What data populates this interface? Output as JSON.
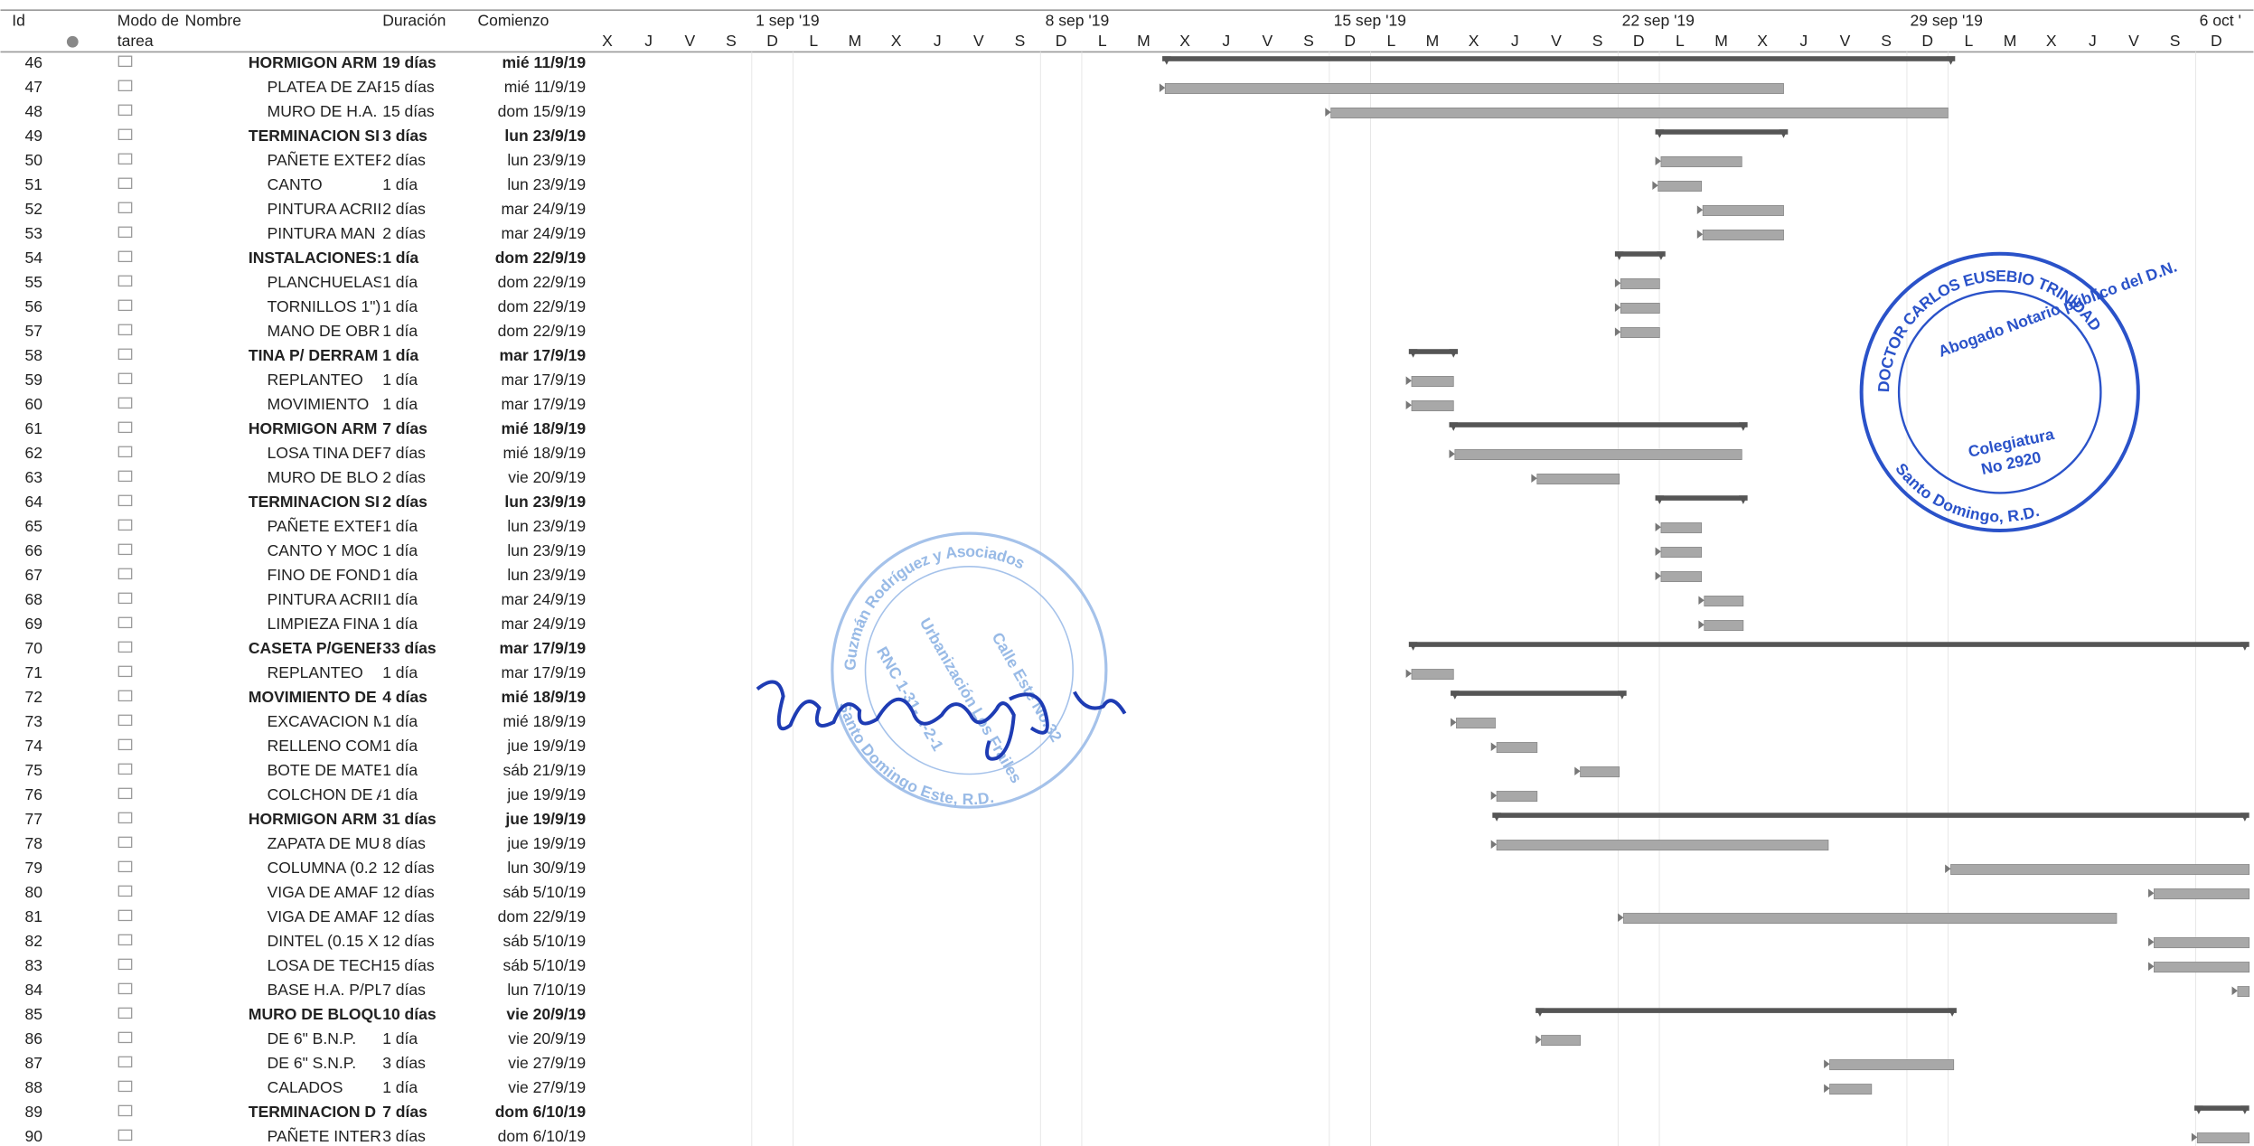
{
  "header": {
    "id": "Id",
    "mode": [
      "Modo de",
      "tarea"
    ],
    "name": "Nombre",
    "duration": "Duración",
    "start": "Comienzo"
  },
  "timeline": {
    "weeks": [
      "1 sep '19",
      "8 sep '19",
      "15 sep '19",
      "22 sep '19",
      "29 sep '19",
      "6 oct '"
    ],
    "days": [
      "X",
      "J",
      "V",
      "S",
      "D",
      "L",
      "M",
      "X",
      "J",
      "V",
      "S",
      "D",
      "L",
      "M",
      "X",
      "J",
      "V",
      "S",
      "D",
      "L",
      "M",
      "X",
      "J",
      "V",
      "S",
      "D",
      "L",
      "M",
      "X",
      "J",
      "V",
      "S",
      "D",
      "L",
      "M",
      "X",
      "J",
      "V",
      "S",
      "D"
    ]
  },
  "rows": [
    [
      "46",
      "HORMIGON ARM",
      "19 días",
      "mié 11/9/19"
    ],
    [
      "47",
      "PLATEA DE ZAF",
      "15 días",
      "mié 11/9/19"
    ],
    [
      "48",
      "MURO DE H.A.",
      "15 días",
      "dom 15/9/19"
    ],
    [
      "49",
      "TERMINACION SI",
      "3 días",
      "lun 23/9/19"
    ],
    [
      "50",
      "PAÑETE EXTER",
      "2 días",
      "lun 23/9/19"
    ],
    [
      "51",
      "CANTO",
      "1 día",
      "lun 23/9/19"
    ],
    [
      "52",
      "PINTURA ACRII",
      "2 días",
      "mar 24/9/19"
    ],
    [
      "53",
      "PINTURA MAN",
      "2 días",
      "mar 24/9/19"
    ],
    [
      "54",
      "INSTALACIONES:",
      "1 día",
      "dom 22/9/19"
    ],
    [
      "55",
      "PLANCHUELAS",
      "1 día",
      "dom 22/9/19"
    ],
    [
      "56",
      "TORNILLOS 1\")",
      "1 día",
      "dom 22/9/19"
    ],
    [
      "57",
      "MANO DE OBR",
      "1 día",
      "dom 22/9/19"
    ],
    [
      "58",
      "TINA P/ DERRAM",
      "1 día",
      "mar 17/9/19"
    ],
    [
      "59",
      "REPLANTEO",
      "1 día",
      "mar 17/9/19"
    ],
    [
      "60",
      "MOVIMIENTO",
      "1 día",
      "mar 17/9/19"
    ],
    [
      "61",
      "HORMIGON ARM",
      "7 días",
      "mié 18/9/19"
    ],
    [
      "62",
      "LOSA TINA DEF",
      "7 días",
      "mié 18/9/19"
    ],
    [
      "63",
      "MURO DE BLO",
      "2 días",
      "vie 20/9/19"
    ],
    [
      "64",
      "TERMINACION SI",
      "2 días",
      "lun 23/9/19"
    ],
    [
      "65",
      "PAÑETE EXTER",
      "1 día",
      "lun 23/9/19"
    ],
    [
      "66",
      "CANTO Y MOC",
      "1 día",
      "lun 23/9/19"
    ],
    [
      "67",
      "FINO DE FOND",
      "1 día",
      "lun 23/9/19"
    ],
    [
      "68",
      "PINTURA ACRII",
      "1 día",
      "mar 24/9/19"
    ],
    [
      "69",
      "LIMPIEZA FINA",
      "1 día",
      "mar 24/9/19"
    ],
    [
      "70",
      "CASETA P/GENERAI",
      "33 días",
      "mar 17/9/19"
    ],
    [
      "71",
      "REPLANTEO",
      "1 día",
      "mar 17/9/19"
    ],
    [
      "72",
      "MOVIMIENTO DE",
      "4 días",
      "mié 18/9/19"
    ],
    [
      "73",
      "EXCAVACION M",
      "1 día",
      "mié 18/9/19"
    ],
    [
      "74",
      "RELLENO COM",
      "1 día",
      "jue 19/9/19"
    ],
    [
      "75",
      "BOTE DE MATE",
      "1 día",
      "sáb 21/9/19"
    ],
    [
      "76",
      "COLCHON DE A",
      "1 día",
      "jue 19/9/19"
    ],
    [
      "77",
      "HORMIGON ARM",
      "31 días",
      "jue 19/9/19"
    ],
    [
      "78",
      "ZAPATA DE MU",
      "8 días",
      "jue 19/9/19"
    ],
    [
      "79",
      "COLUMNA (0.2",
      "12 días",
      "lun 30/9/19"
    ],
    [
      "80",
      "VIGA DE AMAF",
      "12 días",
      "sáb 5/10/19"
    ],
    [
      "81",
      "VIGA DE AMAF",
      "12 días",
      "dom 22/9/19"
    ],
    [
      "82",
      "DINTEL (0.15 X",
      "12 días",
      "sáb 5/10/19"
    ],
    [
      "83",
      "LOSA DE TECH",
      "15 días",
      "sáb 5/10/19"
    ],
    [
      "84",
      "BASE H.A. P/PL",
      "7 días",
      "lun 7/10/19"
    ],
    [
      "85",
      "MURO DE BLOQU",
      "10 días",
      "vie 20/9/19"
    ],
    [
      "86",
      "DE 6\" B.N.P.",
      "1 día",
      "vie 20/9/19"
    ],
    [
      "87",
      "DE 6\" S.N.P.",
      "3 días",
      "vie 27/9/19"
    ],
    [
      "88",
      "CALADOS",
      "1 día",
      "vie 27/9/19"
    ],
    [
      "89",
      "TERMINACION D",
      "7 días",
      "dom 6/10/19"
    ],
    [
      "90",
      "PAÑETE INTER",
      "3 días",
      "dom 6/10/19"
    ]
  ],
  "stamps": {
    "notary": {
      "name": "DOCTOR CARLOS EUSEBIO TRINIDAD",
      "role": "Abogado Notario público del D.N.",
      "reg": [
        "Colegiatura",
        "No 2920"
      ],
      "city": "Santo Domingo, R.D."
    },
    "firm": {
      "name": "Guzmán Rodríguez y Asociados",
      "addr": "Calle Este No.32",
      "urb": "Urbanización Los Frailes",
      "rnc": "RNC 1-31-...-2-1",
      "city": "Santo Domingo Este, R.D."
    }
  }
}
